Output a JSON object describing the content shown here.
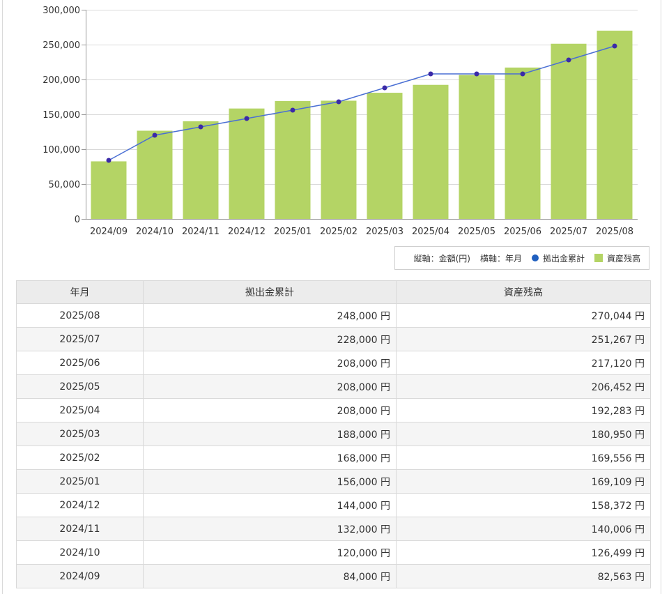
{
  "chart_data": {
    "type": "bar+line",
    "categories": [
      "2024/09",
      "2024/10",
      "2024/11",
      "2024/12",
      "2025/01",
      "2025/02",
      "2025/03",
      "2025/04",
      "2025/05",
      "2025/06",
      "2025/07",
      "2025/08"
    ],
    "series": [
      {
        "name": "資産残高",
        "type": "bar",
        "color": "#b4d465",
        "values": [
          82563,
          126499,
          140006,
          158372,
          169109,
          169556,
          180950,
          192283,
          206452,
          217120,
          251267,
          270044
        ]
      },
      {
        "name": "拠出金累計",
        "type": "line",
        "color": "#4a6fd4",
        "marker_color": "#3b2aa8",
        "values": [
          84000,
          120000,
          132000,
          144000,
          156000,
          168000,
          188000,
          208000,
          208000,
          208000,
          228000,
          248000
        ]
      }
    ],
    "yticks": [
      "300,000",
      "250,000",
      "200,000",
      "150,000",
      "100,000",
      "50,000",
      "0"
    ],
    "ylim": [
      0,
      300000
    ],
    "grid": true,
    "legend_position": "bottom-right"
  },
  "legend": {
    "vertical_axis": "縦軸：金額(円)",
    "horizontal_axis": "横軸：年月",
    "line_series": "拠出金累計",
    "bar_series": "資産残高"
  },
  "table": {
    "headers": [
      "年月",
      "拠出金累計",
      "資産残高"
    ],
    "rows": [
      [
        "2025/08",
        "248,000 円",
        "270,044 円"
      ],
      [
        "2025/07",
        "228,000 円",
        "251,267 円"
      ],
      [
        "2025/06",
        "208,000 円",
        "217,120 円"
      ],
      [
        "2025/05",
        "208,000 円",
        "206,452 円"
      ],
      [
        "2025/04",
        "208,000 円",
        "192,283 円"
      ],
      [
        "2025/03",
        "188,000 円",
        "180,950 円"
      ],
      [
        "2025/02",
        "168,000 円",
        "169,556 円"
      ],
      [
        "2025/01",
        "156,000 円",
        "169,109 円"
      ],
      [
        "2024/12",
        "144,000 円",
        "158,372 円"
      ],
      [
        "2024/11",
        "132,000 円",
        "140,006 円"
      ],
      [
        "2024/10",
        "120,000 円",
        "126,499 円"
      ],
      [
        "2024/09",
        "84,000 円",
        "82,563 円"
      ]
    ]
  }
}
